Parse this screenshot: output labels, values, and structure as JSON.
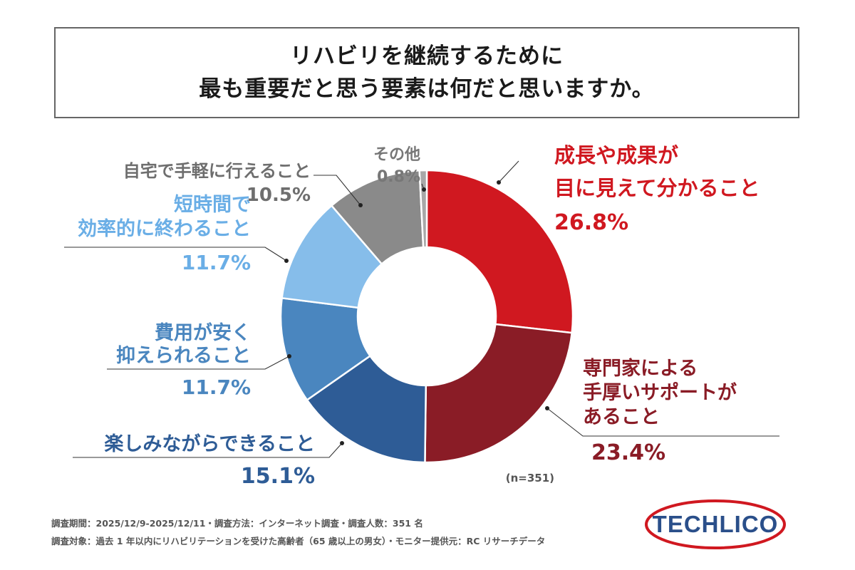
{
  "title": {
    "line1": "リハビリを継続するために",
    "line2": "最も重要だと思う要素は何だと思いますか。"
  },
  "chart_data": {
    "type": "pie",
    "variant": "donut",
    "title": "リハビリを継続するために最も重要だと思う要素は何だと思いますか。",
    "categories": [
      "成長や成果が目に見えて分かること",
      "専門家による手厚いサポートがあること",
      "楽しみながらできること",
      "費用が安く抑えられること",
      "短時間で効率的に終わること",
      "自宅で手軽に行えること",
      "その他"
    ],
    "values": [
      26.8,
      23.4,
      15.1,
      11.7,
      11.7,
      10.5,
      0.8
    ],
    "unit": "%",
    "sample_size": "(n=351)",
    "segments": [
      {
        "label_lines": [
          "成長や成果が",
          "目に見えて分かること"
        ],
        "value_label": "26.8%",
        "color": "#d01820"
      },
      {
        "label_lines": [
          "専門家による",
          "手厚いサポートが",
          "あること"
        ],
        "value_label": "23.4%",
        "color": "#8a1c26",
        "text_color": "#8a1c26"
      },
      {
        "label_lines": [
          "楽しみながらできること"
        ],
        "value_label": "15.1%",
        "color": "#2e5c96",
        "text_color": "#2e5c96"
      },
      {
        "label_lines": [
          "費用が安く",
          "抑えられること"
        ],
        "value_label": "11.7%",
        "color": "#4a86bf",
        "text_color": "#4a86bf"
      },
      {
        "label_lines": [
          "短時間で",
          "効率的に終わること"
        ],
        "value_label": "11.7%",
        "color": "#86bdea",
        "text_color": "#6aaee6"
      },
      {
        "label_lines": [
          "自宅で手軽に行えること"
        ],
        "value_label": "10.5%",
        "color": "#8a8a8a",
        "text_color": "#6e6e6e"
      },
      {
        "label_lines": [
          "その他"
        ],
        "value_label": "0.8%",
        "color": "#a8a8a8",
        "text_color": "#777777"
      }
    ]
  },
  "footer": {
    "line1": "調査期間：2025/12/9-2025/12/11・調査方法：インターネット調査・調査人数：351 名",
    "line2": "調査対象：過去 1 年以内にリハビリテーションを受けた高齢者（65 歳以上の男女）・モニター提供元：RC リサーチデータ"
  },
  "logo": {
    "text": "TECHLICO",
    "color": "#2a4f8a",
    "ring_color": "#d01820"
  }
}
